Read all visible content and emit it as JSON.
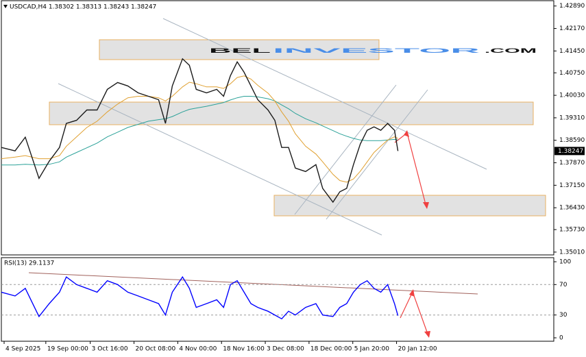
{
  "chart_data": [
    {
      "type": "line",
      "title": "USDCAD,H4 1.38302 1.38313 1.38243 1.38247",
      "watermark": [
        "BEL",
        "INVESTOR",
        ".COM"
      ],
      "x": [
        0,
        20,
        35,
        55,
        70,
        85,
        95,
        110,
        125,
        140,
        155,
        170,
        185,
        200,
        215,
        230,
        240,
        250,
        265,
        275,
        285,
        300,
        315,
        325,
        335,
        345,
        355,
        365,
        375,
        390,
        400,
        410,
        420,
        430,
        445,
        460,
        470,
        485,
        495,
        505,
        515,
        525,
        535,
        545,
        555,
        565,
        575,
        580
      ],
      "xlim": [
        0,
        808
      ],
      "xticks": [
        {
          "value": 4,
          "label": "4 Sep 2025"
        },
        {
          "value": 65,
          "label": "19 Sep 00:00"
        },
        {
          "value": 130,
          "label": "3 Oct 16:00"
        },
        {
          "value": 194,
          "label": "20 Oct 08:00"
        },
        {
          "value": 258,
          "label": "4 Nov 00:00"
        },
        {
          "value": 322,
          "label": "18 Nov 16:00"
        },
        {
          "value": 386,
          "label": "3 Dec 08:00"
        },
        {
          "value": 450,
          "label": "18 Dec 00:00"
        },
        {
          "value": 514,
          "label": "5 Jan 20:00"
        },
        {
          "value": 578,
          "label": "20 Jan 12:00"
        }
      ],
      "ylim": [
        1.3492,
        1.4306
      ],
      "yticks": [
        {
          "value": 1.4289,
          "label": "1.42890"
        },
        {
          "value": 1.4217,
          "label": "1.42170"
        },
        {
          "value": 1.4145,
          "label": "1.41450"
        },
        {
          "value": 1.4075,
          "label": "1.40750"
        },
        {
          "value": 1.4003,
          "label": "1.40030"
        },
        {
          "value": 1.3931,
          "label": "1.39310"
        },
        {
          "value": 1.3859,
          "label": "1.38590"
        },
        {
          "value": 1.3787,
          "label": "1.37870"
        },
        {
          "value": 1.3715,
          "label": "1.37150"
        },
        {
          "value": 1.3643,
          "label": "1.36430"
        },
        {
          "value": 1.3573,
          "label": "1.35730"
        },
        {
          "value": 1.3501,
          "label": "1.35010"
        }
      ],
      "last_price": {
        "value": 1.38247,
        "label": "1.38247"
      },
      "series": [
        {
          "color": "#1a1a1a",
          "values": [
            1.3836,
            1.3825,
            1.3869,
            1.3737,
            1.3792,
            1.3836,
            1.3913,
            1.3923,
            1.3956,
            1.3956,
            1.4022,
            1.4044,
            1.4033,
            1.4011,
            1.4,
            1.3989,
            1.3913,
            1.4033,
            1.412,
            1.4099,
            1.4022,
            1.4011,
            1.4022,
            1.4,
            1.4066,
            1.411,
            1.4077,
            1.4033,
            1.3989,
            1.3956,
            1.3923,
            1.3836,
            1.3836,
            1.377,
            1.3759,
            1.3781,
            1.3705,
            1.3661,
            1.3694,
            1.3705,
            1.3781,
            1.3847,
            1.3891,
            1.3902,
            1.3891,
            1.3913,
            1.3891,
            1.38247
          ]
        },
        {
          "color": "#e0a030",
          "values": [
            1.38,
            1.3805,
            1.381,
            1.38,
            1.38,
            1.381,
            1.384,
            1.387,
            1.39,
            1.392,
            1.395,
            1.3975,
            1.3995,
            1.4,
            1.4,
            1.3995,
            1.3985,
            1.4,
            1.403,
            1.4045,
            1.404,
            1.403,
            1.403,
            1.4025,
            1.404,
            1.406,
            1.4065,
            1.4055,
            1.4035,
            1.401,
            1.3985,
            1.395,
            1.392,
            1.388,
            1.384,
            1.3815,
            1.379,
            1.375,
            1.373,
            1.3725,
            1.3735,
            1.376,
            1.379,
            1.382,
            1.384,
            1.386,
            1.387,
            1.3865
          ]
        },
        {
          "color": "#2aa198",
          "values": [
            1.378,
            1.378,
            1.3782,
            1.378,
            1.3782,
            1.379,
            1.3805,
            1.382,
            1.3835,
            1.385,
            1.387,
            1.3885,
            1.39,
            1.391,
            1.392,
            1.3925,
            1.3928,
            1.3935,
            1.395,
            1.3958,
            1.3962,
            1.3968,
            1.3975,
            1.398,
            1.3988,
            1.3995,
            1.4,
            1.4,
            1.3998,
            1.3992,
            1.3985,
            1.3972,
            1.396,
            1.3945,
            1.3928,
            1.3915,
            1.3905,
            1.389,
            1.388,
            1.3872,
            1.3865,
            1.386,
            1.3858,
            1.3858,
            1.3858,
            1.386,
            1.3862,
            1.386
          ]
        }
      ]
    },
    {
      "type": "line",
      "title": "RSI(13) 29.1137",
      "x": [
        0,
        20,
        35,
        55,
        70,
        85,
        95,
        110,
        125,
        140,
        155,
        170,
        185,
        200,
        215,
        230,
        240,
        250,
        265,
        275,
        285,
        300,
        315,
        325,
        335,
        345,
        355,
        365,
        375,
        390,
        400,
        410,
        420,
        430,
        445,
        460,
        470,
        485,
        495,
        505,
        515,
        525,
        535,
        545,
        555,
        565,
        575,
        580
      ],
      "xlim": [
        0,
        808
      ],
      "ylim": [
        -4.5,
        105.4
      ],
      "yticks": [
        0,
        30,
        70,
        100
      ],
      "levels": [
        30,
        70
      ],
      "series": [
        {
          "color": "#0000ff",
          "values": [
            60,
            55,
            65,
            28,
            45,
            60,
            80,
            70,
            65,
            60,
            75,
            70,
            60,
            55,
            50,
            45,
            30,
            60,
            80,
            65,
            40,
            45,
            50,
            40,
            70,
            75,
            60,
            45,
            40,
            35,
            30,
            25,
            35,
            30,
            40,
            45,
            30,
            28,
            40,
            45,
            60,
            70,
            75,
            65,
            60,
            70,
            45,
            29.1137
          ]
        }
      ]
    }
  ]
}
